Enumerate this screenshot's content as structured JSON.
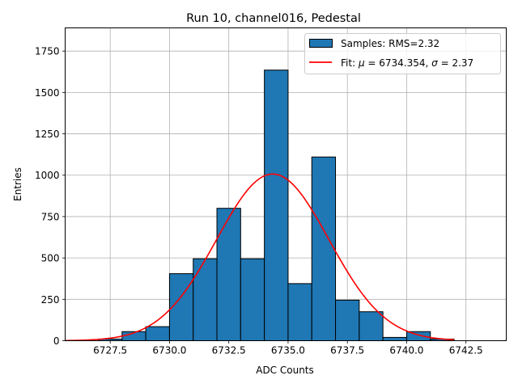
{
  "chart_data": {
    "type": "bar",
    "title": "Run 10, channel016, Pedestal",
    "xlabel": "ADC Counts",
    "ylabel": "Entries",
    "xlim": [
      6725.6,
      6744.2
    ],
    "ylim": [
      0,
      1890
    ],
    "xticks": [
      6727.5,
      6730.0,
      6732.5,
      6735.0,
      6737.5,
      6740.0,
      6742.5
    ],
    "xtick_labels": [
      "6727.5",
      "6730.0",
      "6732.5",
      "6735.0",
      "6737.5",
      "6740.0",
      "6742.5"
    ],
    "yticks": [
      0,
      250,
      500,
      750,
      1000,
      1250,
      1500,
      1750
    ],
    "ytick_labels": [
      "0",
      "250",
      "500",
      "750",
      "1000",
      "1250",
      "1500",
      "1750"
    ],
    "grid": true,
    "histogram": {
      "name": "Samples: RMS=2.32",
      "color": "#1f77b4",
      "edge_color": "#000000",
      "bin_edges": [
        6727.0,
        6728.0,
        6729.0,
        6730.0,
        6731.0,
        6732.0,
        6733.0,
        6734.0,
        6735.0,
        6736.0,
        6737.0,
        6738.0,
        6739.0,
        6740.0,
        6741.0,
        6742.0
      ],
      "counts": [
        10,
        55,
        85,
        405,
        495,
        800,
        495,
        1635,
        345,
        1110,
        245,
        175,
        20,
        55,
        10
      ]
    },
    "fit": {
      "name_prefix": "Fit: ",
      "mu_symbol": "μ",
      "sigma_symbol": "σ",
      "mu_text": " = 6734.354, ",
      "sigma_text": " = 2.37",
      "color": "#ff0000",
      "mu": 6734.354,
      "sigma": 2.37,
      "amplitude": 1007,
      "x_range": [
        6725.6,
        6742.0
      ]
    },
    "legend_position": "top-right"
  }
}
